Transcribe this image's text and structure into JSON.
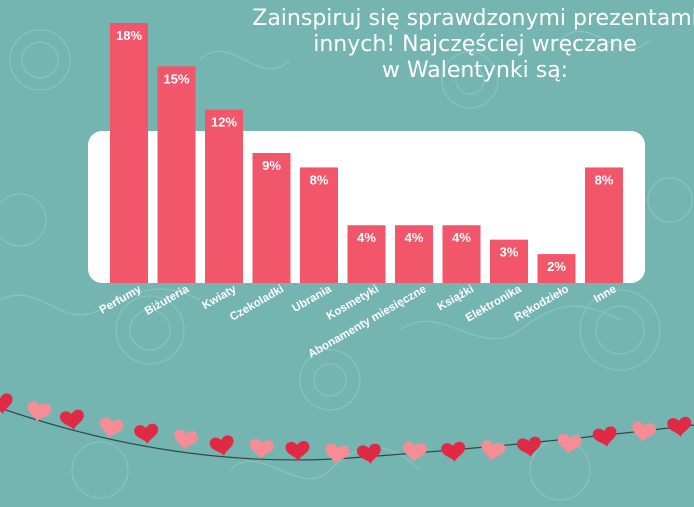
{
  "title_lines": [
    "Zainspiruj się sprawdzonymi prezentami",
    "innych! Najczęściej wręczane",
    "w Walentynki są:"
  ],
  "colors": {
    "background": "#74b5b1",
    "bar": "#f2566a",
    "panel": "#ffffff",
    "label_text": "#ffffff",
    "heart_dark": "#e02a45",
    "heart_light": "#f58c96",
    "string": "#2f4a4c"
  },
  "chart_data": {
    "type": "bar",
    "title": "Zainspiruj się sprawdzonymi prezentami innych! Najczęściej wręczane w Walentynki są:",
    "xlabel": "",
    "ylabel": "",
    "unit": "%",
    "categories": [
      "Perfumy",
      "Biżuteria",
      "Kwiaty",
      "Czekoladki",
      "Ubrania",
      "Kosmetyki",
      "Abonamenty miesięczne",
      "Książki",
      "Elektronika",
      "Rękodzieło",
      "Inne"
    ],
    "values": [
      18,
      15,
      12,
      9,
      8,
      4,
      4,
      4,
      3,
      2,
      8
    ],
    "data_labels": [
      "18%",
      "15%",
      "12%",
      "9%",
      "8%",
      "4%",
      "4%",
      "4%",
      "3%",
      "2%",
      "8%"
    ],
    "ylim": [
      0,
      18
    ]
  }
}
